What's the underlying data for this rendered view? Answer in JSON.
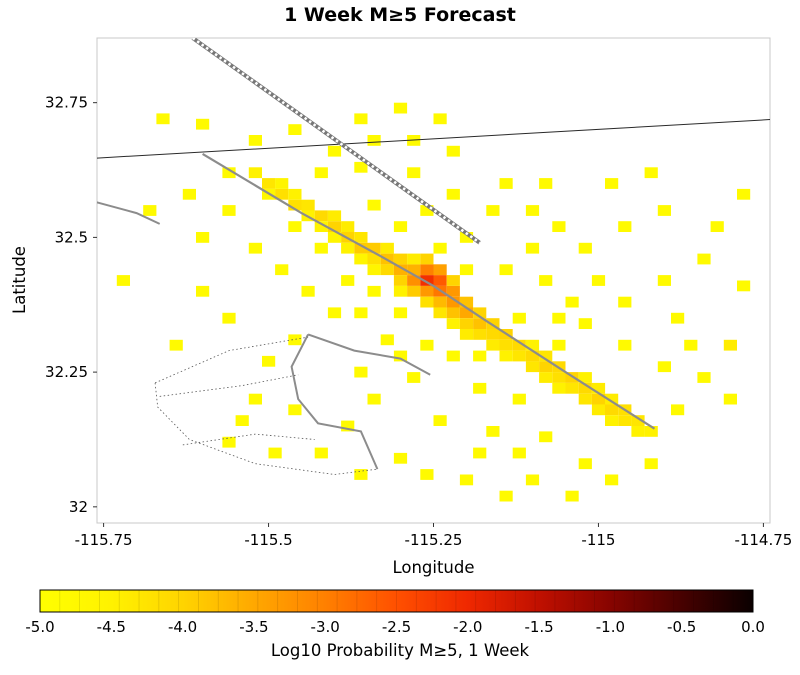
{
  "figure": {
    "title": "1 Week M≥5 Forecast",
    "xlabel": "Longitude",
    "ylabel": "Latitude",
    "colorbar_label": "Log10 Probability M≥5, 1 Week"
  },
  "chart_data": {
    "type": "heatmap",
    "title": "1 Week M≥5 Forecast",
    "xlabel": "Longitude",
    "ylabel": "Latitude",
    "xlim": [
      -115.76,
      -114.74
    ],
    "ylim": [
      31.97,
      32.87
    ],
    "xticks": {
      "values": [
        -115.75,
        -115.5,
        -115.25,
        -115.0,
        -114.75
      ],
      "labels": [
        "-115.75",
        "-115.5",
        "-115.25",
        "-115",
        "-114.75"
      ]
    },
    "yticks": {
      "values": [
        32.0,
        32.25,
        32.5,
        32.75
      ],
      "labels": [
        "32",
        "32.25",
        "32.5",
        "32.75"
      ]
    },
    "grid": false,
    "cell_size_deg": 0.02,
    "colorbar": {
      "label": "Log10 Probability M≥5, 1 Week",
      "min": -5,
      "max": 0,
      "tick_values": [
        -5,
        -4.5,
        -4,
        -3.5,
        -3,
        -2.5,
        -2,
        -1.5,
        -1,
        -0.5,
        0
      ],
      "tick_labels": [
        "-5.0",
        "-4.5",
        "-4.0",
        "-3.5",
        "-3.0",
        "-2.5",
        "-2.0",
        "-1.5",
        "-1.0",
        "-0.5",
        "0.0"
      ]
    },
    "colormap": [
      [
        -5.0,
        "#ffff00"
      ],
      [
        -4.5,
        "#fff200"
      ],
      [
        -4.0,
        "#ffd400"
      ],
      [
        -3.5,
        "#ffa800"
      ],
      [
        -3.0,
        "#ff8000"
      ],
      [
        -2.5,
        "#ff5000"
      ],
      [
        -2.0,
        "#ef2800"
      ],
      [
        -1.5,
        "#c01000"
      ],
      [
        -1.0,
        "#870400"
      ],
      [
        -0.5,
        "#470100"
      ],
      [
        0.0,
        "#0a0000"
      ]
    ],
    "cells": [
      [
        -115.52,
        32.62,
        -4.5
      ],
      [
        -115.5,
        32.6,
        -4.3
      ],
      [
        -115.5,
        32.58,
        -4.7
      ],
      [
        -115.48,
        32.58,
        -4.2
      ],
      [
        -115.48,
        32.6,
        -4.6
      ],
      [
        -115.46,
        32.56,
        -4.2
      ],
      [
        -115.46,
        32.58,
        -4.5
      ],
      [
        -115.44,
        32.56,
        -4.3
      ],
      [
        -115.44,
        32.54,
        -4.5
      ],
      [
        -115.42,
        32.54,
        -4.1
      ],
      [
        -115.42,
        32.52,
        -4.5
      ],
      [
        -115.4,
        32.52,
        -4.0
      ],
      [
        -115.4,
        32.54,
        -4.4
      ],
      [
        -115.4,
        32.5,
        -4.6
      ],
      [
        -115.38,
        32.5,
        -4.0
      ],
      [
        -115.38,
        32.52,
        -4.4
      ],
      [
        -115.38,
        32.48,
        -4.5
      ],
      [
        -115.36,
        32.48,
        -3.9
      ],
      [
        -115.36,
        32.5,
        -4.3
      ],
      [
        -115.36,
        32.46,
        -4.6
      ],
      [
        -115.34,
        32.48,
        -3.9
      ],
      [
        -115.34,
        32.46,
        -4.2
      ],
      [
        -115.34,
        32.44,
        -4.6
      ],
      [
        -115.32,
        32.46,
        -3.8
      ],
      [
        -115.32,
        32.44,
        -4.1
      ],
      [
        -115.32,
        32.48,
        -4.4
      ],
      [
        -115.3,
        32.44,
        -3.6
      ],
      [
        -115.3,
        32.46,
        -4.0
      ],
      [
        -115.3,
        32.42,
        -4.0
      ],
      [
        -115.3,
        32.4,
        -4.5
      ],
      [
        -115.28,
        32.42,
        -3.2
      ],
      [
        -115.28,
        32.44,
        -3.6
      ],
      [
        -115.28,
        32.4,
        -3.9
      ],
      [
        -115.28,
        32.46,
        -4.4
      ],
      [
        -115.26,
        32.42,
        -2.1
      ],
      [
        -115.26,
        32.44,
        -3.0
      ],
      [
        -115.26,
        32.4,
        -3.3
      ],
      [
        -115.26,
        32.46,
        -4.0
      ],
      [
        -115.26,
        32.38,
        -4.2
      ],
      [
        -115.24,
        32.42,
        -2.6
      ],
      [
        -115.24,
        32.4,
        -2.9
      ],
      [
        -115.24,
        32.44,
        -3.4
      ],
      [
        -115.24,
        32.38,
        -3.7
      ],
      [
        -115.24,
        32.36,
        -4.3
      ],
      [
        -115.22,
        32.4,
        -3.3
      ],
      [
        -115.22,
        32.38,
        -3.3
      ],
      [
        -115.22,
        32.36,
        -3.8
      ],
      [
        -115.22,
        32.42,
        -4.0
      ],
      [
        -115.22,
        32.34,
        -4.5
      ],
      [
        -115.2,
        32.36,
        -3.5
      ],
      [
        -115.2,
        32.38,
        -3.8
      ],
      [
        -115.2,
        32.34,
        -4.0
      ],
      [
        -115.2,
        32.32,
        -4.4
      ],
      [
        -115.18,
        32.34,
        -3.8
      ],
      [
        -115.18,
        32.36,
        -4.0
      ],
      [
        -115.18,
        32.32,
        -4.2
      ],
      [
        -115.16,
        32.34,
        -4.0
      ],
      [
        -115.16,
        32.32,
        -4.1
      ],
      [
        -115.16,
        32.3,
        -4.4
      ],
      [
        -115.14,
        32.32,
        -4.0
      ],
      [
        -115.14,
        32.3,
        -4.2
      ],
      [
        -115.14,
        32.28,
        -4.5
      ],
      [
        -115.12,
        32.3,
        -4.1
      ],
      [
        -115.12,
        32.28,
        -4.3
      ],
      [
        -115.1,
        32.28,
        -4.1
      ],
      [
        -115.1,
        32.26,
        -4.3
      ],
      [
        -115.1,
        32.3,
        -4.5
      ],
      [
        -115.08,
        32.26,
        -4.0
      ],
      [
        -115.08,
        32.28,
        -4.3
      ],
      [
        -115.08,
        32.24,
        -4.4
      ],
      [
        -115.06,
        32.26,
        -4.1
      ],
      [
        -115.06,
        32.24,
        -4.2
      ],
      [
        -115.06,
        32.22,
        -4.5
      ],
      [
        -115.04,
        32.24,
        -4.0
      ],
      [
        -115.04,
        32.22,
        -4.3
      ],
      [
        -115.02,
        32.22,
        -4.1
      ],
      [
        -115.02,
        32.2,
        -4.3
      ],
      [
        -115.02,
        32.24,
        -4.5
      ],
      [
        -115.0,
        32.2,
        -4.0
      ],
      [
        -115.0,
        32.22,
        -4.4
      ],
      [
        -115.0,
        32.18,
        -4.4
      ],
      [
        -114.98,
        32.18,
        -4.1
      ],
      [
        -114.98,
        32.2,
        -4.4
      ],
      [
        -114.98,
        32.16,
        -4.5
      ],
      [
        -114.96,
        32.18,
        -4.2
      ],
      [
        -114.96,
        32.16,
        -4.3
      ],
      [
        -114.94,
        32.16,
        -4.3
      ],
      [
        -114.94,
        32.14,
        -4.5
      ],
      [
        -114.92,
        32.14,
        -4.5
      ],
      [
        -114.8,
        32.3,
        -4.4
      ]
    ],
    "scatter_value": -4.8,
    "scatter_cells": [
      [
        -115.66,
        32.72
      ],
      [
        -115.6,
        32.71
      ],
      [
        -115.62,
        32.58
      ],
      [
        -115.68,
        32.55
      ],
      [
        -115.72,
        32.42
      ],
      [
        -115.6,
        32.4
      ],
      [
        -115.64,
        32.3
      ],
      [
        -115.56,
        32.35
      ],
      [
        -115.5,
        32.27
      ],
      [
        -115.46,
        32.31
      ],
      [
        -115.52,
        32.2
      ],
      [
        -115.46,
        32.18
      ],
      [
        -115.56,
        32.12
      ],
      [
        -115.42,
        32.1
      ],
      [
        -115.36,
        32.06
      ],
      [
        -115.3,
        32.09
      ],
      [
        -115.38,
        32.15
      ],
      [
        -115.34,
        32.2
      ],
      [
        -115.36,
        32.25
      ],
      [
        -115.32,
        32.31
      ],
      [
        -115.36,
        32.36
      ],
      [
        -115.28,
        32.24
      ],
      [
        -115.24,
        32.16
      ],
      [
        -115.2,
        32.05
      ],
      [
        -115.14,
        32.02
      ],
      [
        -115.1,
        32.05
      ],
      [
        -115.04,
        32.02
      ],
      [
        -115.02,
        32.08
      ],
      [
        -114.98,
        32.05
      ],
      [
        -115.12,
        32.1
      ],
      [
        -115.08,
        32.13
      ],
      [
        -115.16,
        32.14
      ],
      [
        -115.18,
        32.22
      ],
      [
        -115.12,
        32.2
      ],
      [
        -115.06,
        32.3
      ],
      [
        -115.02,
        32.34
      ],
      [
        -114.96,
        32.3
      ],
      [
        -114.9,
        32.26
      ],
      [
        -114.86,
        32.3
      ],
      [
        -114.84,
        32.24
      ],
      [
        -114.78,
        32.41
      ],
      [
        -114.84,
        32.46
      ],
      [
        -114.9,
        32.42
      ],
      [
        -114.96,
        32.38
      ],
      [
        -115.0,
        32.42
      ],
      [
        -115.04,
        32.38
      ],
      [
        -115.08,
        32.42
      ],
      [
        -115.02,
        32.48
      ],
      [
        -114.96,
        32.52
      ],
      [
        -114.9,
        32.55
      ],
      [
        -114.82,
        32.52
      ],
      [
        -114.78,
        32.58
      ],
      [
        -115.06,
        32.52
      ],
      [
        -115.1,
        32.48
      ],
      [
        -115.14,
        32.44
      ],
      [
        -115.1,
        32.55
      ],
      [
        -115.16,
        32.55
      ],
      [
        -115.2,
        32.5
      ],
      [
        -115.14,
        32.6
      ],
      [
        -115.08,
        32.6
      ],
      [
        -114.98,
        32.6
      ],
      [
        -114.92,
        32.62
      ],
      [
        -115.26,
        32.55
      ],
      [
        -115.3,
        32.52
      ],
      [
        -115.22,
        32.58
      ],
      [
        -115.34,
        32.56
      ],
      [
        -115.28,
        32.62
      ],
      [
        -115.36,
        32.63
      ],
      [
        -115.42,
        32.62
      ],
      [
        -115.4,
        32.66
      ],
      [
        -115.34,
        32.68
      ],
      [
        -115.28,
        32.68
      ],
      [
        -115.22,
        32.66
      ],
      [
        -115.36,
        32.72
      ],
      [
        -115.46,
        32.7
      ],
      [
        -115.52,
        32.68
      ],
      [
        -115.3,
        32.74
      ],
      [
        -115.24,
        32.72
      ],
      [
        -115.56,
        32.62
      ],
      [
        -115.56,
        32.55
      ],
      [
        -115.6,
        32.5
      ],
      [
        -115.52,
        32.48
      ],
      [
        -115.48,
        32.44
      ],
      [
        -115.44,
        32.4
      ],
      [
        -115.4,
        32.36
      ],
      [
        -115.38,
        32.42
      ],
      [
        -115.34,
        32.4
      ],
      [
        -115.42,
        32.48
      ],
      [
        -115.46,
        32.52
      ],
      [
        -115.3,
        32.36
      ],
      [
        -115.26,
        32.3
      ],
      [
        -115.22,
        32.28
      ],
      [
        -115.3,
        32.28
      ],
      [
        -115.18,
        32.28
      ],
      [
        -115.12,
        32.35
      ],
      [
        -115.06,
        32.35
      ],
      [
        -114.88,
        32.35
      ],
      [
        -115.2,
        32.44
      ],
      [
        -115.24,
        32.48
      ],
      [
        -115.18,
        32.1
      ],
      [
        -115.26,
        32.06
      ],
      [
        -114.92,
        32.08
      ],
      [
        -114.88,
        32.18
      ],
      [
        -114.8,
        32.2
      ],
      [
        -115.49,
        32.1
      ],
      [
        -115.54,
        32.16
      ]
    ],
    "map_lines": [
      {
        "name": "international-border",
        "color": "#2a2a2a",
        "width": 1,
        "dash": "",
        "points": [
          [
            -115.79,
            32.645
          ],
          [
            -114.72,
            32.72
          ]
        ]
      },
      {
        "name": "railway-line",
        "color": "#777777",
        "width": 4,
        "dash": "",
        "railway": true,
        "points": [
          [
            -115.615,
            32.87
          ],
          [
            -115.18,
            32.49
          ]
        ]
      },
      {
        "name": "fault-main",
        "color": "#8c8c8c",
        "width": 2.2,
        "dash": "",
        "points": [
          [
            -115.6,
            32.655
          ],
          [
            -115.45,
            32.545
          ],
          [
            -115.33,
            32.465
          ],
          [
            -115.25,
            32.41
          ],
          [
            -115.17,
            32.345
          ],
          [
            -115.05,
            32.25
          ],
          [
            -114.915,
            32.145
          ]
        ]
      },
      {
        "name": "fault-left",
        "color": "#8c8c8c",
        "width": 2,
        "dash": "",
        "points": [
          [
            -115.79,
            32.575
          ],
          [
            -115.7,
            32.545
          ],
          [
            -115.665,
            32.525
          ]
        ]
      },
      {
        "name": "fault-curvy",
        "color": "#8c8c8c",
        "width": 2,
        "dash": "",
        "points": [
          [
            -115.44,
            32.32
          ],
          [
            -115.465,
            32.26
          ],
          [
            -115.455,
            32.2
          ],
          [
            -115.425,
            32.155
          ],
          [
            -115.36,
            32.14
          ],
          [
            -115.335,
            32.07
          ]
        ]
      },
      {
        "name": "fault-branch",
        "color": "#8c8c8c",
        "width": 2,
        "dash": "",
        "points": [
          [
            -115.44,
            32.32
          ],
          [
            -115.37,
            32.29
          ],
          [
            -115.3,
            32.275
          ],
          [
            -115.255,
            32.245
          ]
        ]
      },
      {
        "name": "canal-upper",
        "color": "#555555",
        "width": 0.8,
        "dash": "1.5,2.5",
        "points": [
          [
            -115.672,
            32.23
          ],
          [
            -115.56,
            32.29
          ],
          [
            -115.44,
            32.315
          ]
        ]
      },
      {
        "name": "canal-outer",
        "color": "#555555",
        "width": 0.8,
        "dash": "1.5,2.5",
        "points": [
          [
            -115.672,
            32.23
          ],
          [
            -115.668,
            32.185
          ],
          [
            -115.62,
            32.125
          ],
          [
            -115.52,
            32.08
          ],
          [
            -115.4,
            32.06
          ],
          [
            -115.335,
            32.07
          ]
        ]
      },
      {
        "name": "canal-inner",
        "color": "#555555",
        "width": 0.8,
        "dash": "1.5,2.5",
        "points": [
          [
            -115.665,
            32.205
          ],
          [
            -115.54,
            32.225
          ],
          [
            -115.455,
            32.245
          ]
        ]
      },
      {
        "name": "canal-lower",
        "color": "#555555",
        "width": 0.8,
        "dash": "1.5,2.5",
        "points": [
          [
            -115.63,
            32.115
          ],
          [
            -115.52,
            32.135
          ],
          [
            -115.43,
            32.125
          ]
        ]
      }
    ]
  }
}
